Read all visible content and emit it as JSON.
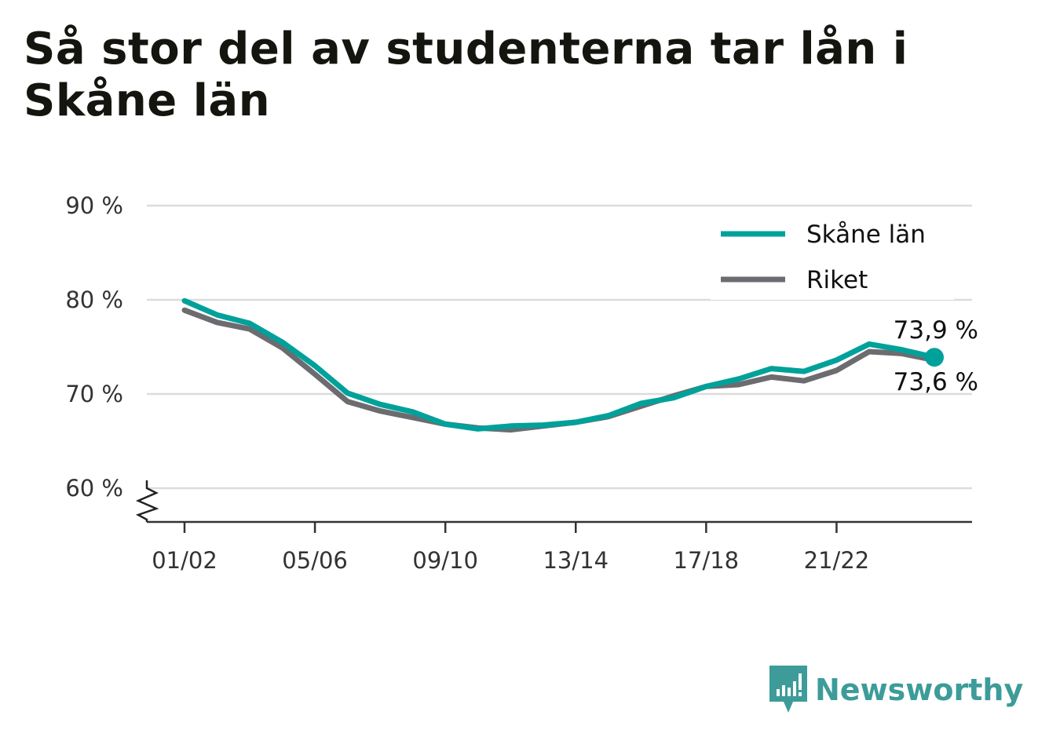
{
  "title": "Så stor del av studenterna tar lån i Skåne län",
  "brand": {
    "name": "Newsworthy",
    "icon": "newsworthy-logo-icon",
    "color": "#3d9c99"
  },
  "chart_data": {
    "type": "line",
    "title": "Så stor del av studenterna tar lån i Skåne län",
    "xlabel": "",
    "ylabel": "",
    "x": [
      "01/02",
      "02/03",
      "03/04",
      "04/05",
      "05/06",
      "06/07",
      "07/08",
      "08/09",
      "09/10",
      "10/11",
      "11/12",
      "12/13",
      "13/14",
      "14/15",
      "15/16",
      "16/17",
      "17/18",
      "18/19",
      "19/20",
      "20/21",
      "21/22",
      "22/23",
      "23/24",
      "24/25"
    ],
    "x_tick_labels": [
      "01/02",
      "05/06",
      "09/10",
      "13/14",
      "17/18",
      "21/22"
    ],
    "y_ticks": [
      60,
      70,
      80,
      90
    ],
    "y_tick_labels": [
      "60 %",
      "70 %",
      "80 %",
      "90 %"
    ],
    "ylim": [
      56.5,
      90
    ],
    "y_axis_break": true,
    "grid": true,
    "legend_position": "top-right",
    "series": [
      {
        "name": "Skåne län",
        "color": "#00a19a",
        "values": [
          79.9,
          78.4,
          77.5,
          75.5,
          73.0,
          70.1,
          68.9,
          68.1,
          66.8,
          66.3,
          66.6,
          66.7,
          67.0,
          67.7,
          69.0,
          69.6,
          70.8,
          71.6,
          72.7,
          72.4,
          73.6,
          75.3,
          74.7,
          73.9
        ],
        "end_label": "73,9 %",
        "end_marker": true
      },
      {
        "name": "Riket",
        "color": "#6c6c70",
        "values": [
          78.9,
          77.6,
          76.9,
          74.9,
          72.1,
          69.2,
          68.2,
          67.5,
          66.8,
          66.4,
          66.2,
          66.6,
          67.0,
          67.6,
          68.7,
          69.8,
          70.8,
          71.0,
          71.8,
          71.4,
          72.5,
          74.5,
          74.3,
          73.6
        ],
        "end_label": "73,6 %",
        "end_marker": false
      }
    ]
  }
}
